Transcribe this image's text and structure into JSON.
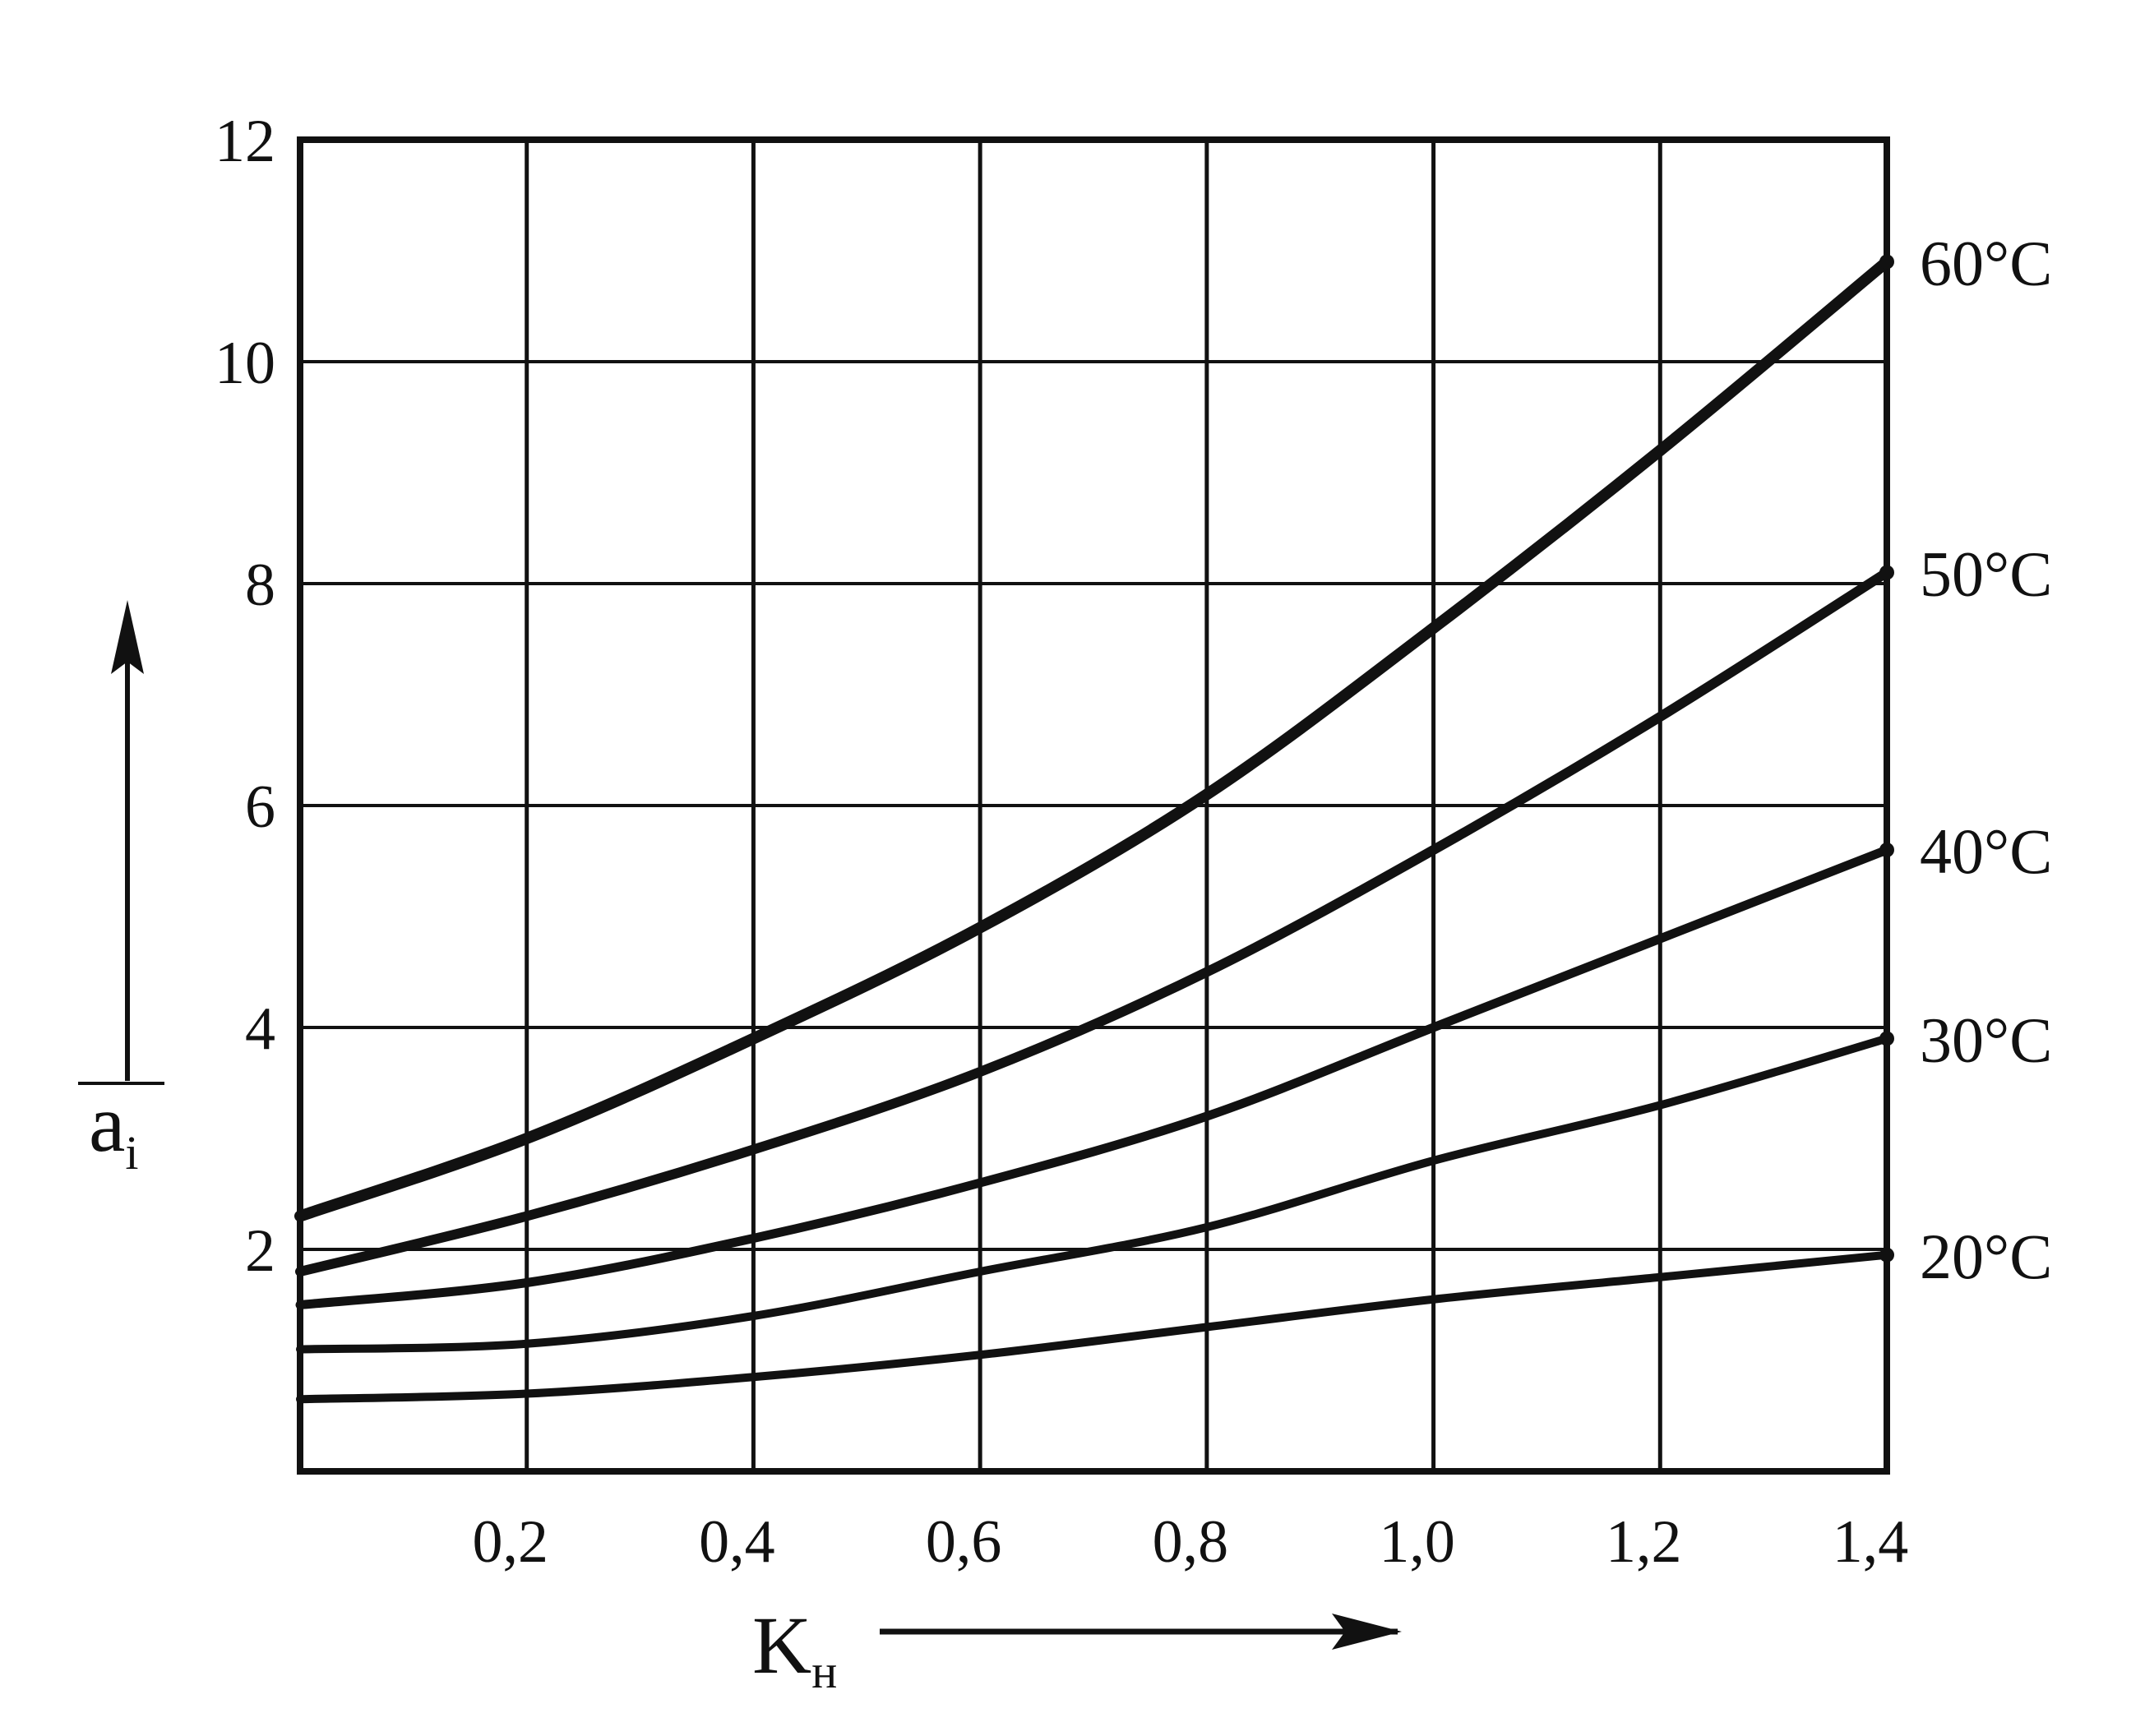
{
  "chart_data": {
    "type": "line",
    "xlabel": "K",
    "xlabel_sub": "н",
    "ylabel": "a",
    "ylabel_sub": "i",
    "xlim": [
      0,
      1.4
    ],
    "ylim": [
      0,
      12
    ],
    "x_ticks": [
      {
        "value": 0.2,
        "label": "0,2"
      },
      {
        "value": 0.4,
        "label": "0,4"
      },
      {
        "value": 0.6,
        "label": "0,6"
      },
      {
        "value": 0.8,
        "label": "0,8"
      },
      {
        "value": 1.0,
        "label": "1,0"
      },
      {
        "value": 1.2,
        "label": "1,2"
      },
      {
        "value": 1.4,
        "label": "1,4"
      }
    ],
    "y_ticks": [
      {
        "value": 2,
        "label": "2"
      },
      {
        "value": 4,
        "label": "4"
      },
      {
        "value": 6,
        "label": "6"
      },
      {
        "value": 8,
        "label": "8"
      },
      {
        "value": 10,
        "label": "10"
      },
      {
        "value": 12,
        "label": "12"
      }
    ],
    "grid": true,
    "x": [
      0,
      0.2,
      0.4,
      0.6,
      0.8,
      1.0,
      1.2,
      1.4
    ],
    "series": [
      {
        "name": "60°C",
        "values": [
          2.3,
          3.0,
          3.9,
          4.9,
          6.1,
          7.6,
          9.2,
          10.9
        ]
      },
      {
        "name": "50°C",
        "values": [
          1.8,
          2.3,
          2.9,
          3.6,
          4.5,
          5.6,
          6.8,
          8.1
        ]
      },
      {
        "name": "40°C",
        "values": [
          1.5,
          1.7,
          2.1,
          2.6,
          3.2,
          4.0,
          4.8,
          5.6
        ]
      },
      {
        "name": "30°C",
        "values": [
          1.1,
          1.15,
          1.4,
          1.8,
          2.2,
          2.8,
          3.3,
          3.9
        ]
      },
      {
        "name": "20°C",
        "values": [
          0.65,
          0.7,
          0.85,
          1.05,
          1.3,
          1.55,
          1.75,
          1.95
        ]
      }
    ],
    "colors": {
      "ink": "#111111",
      "background": "#ffffff"
    }
  }
}
